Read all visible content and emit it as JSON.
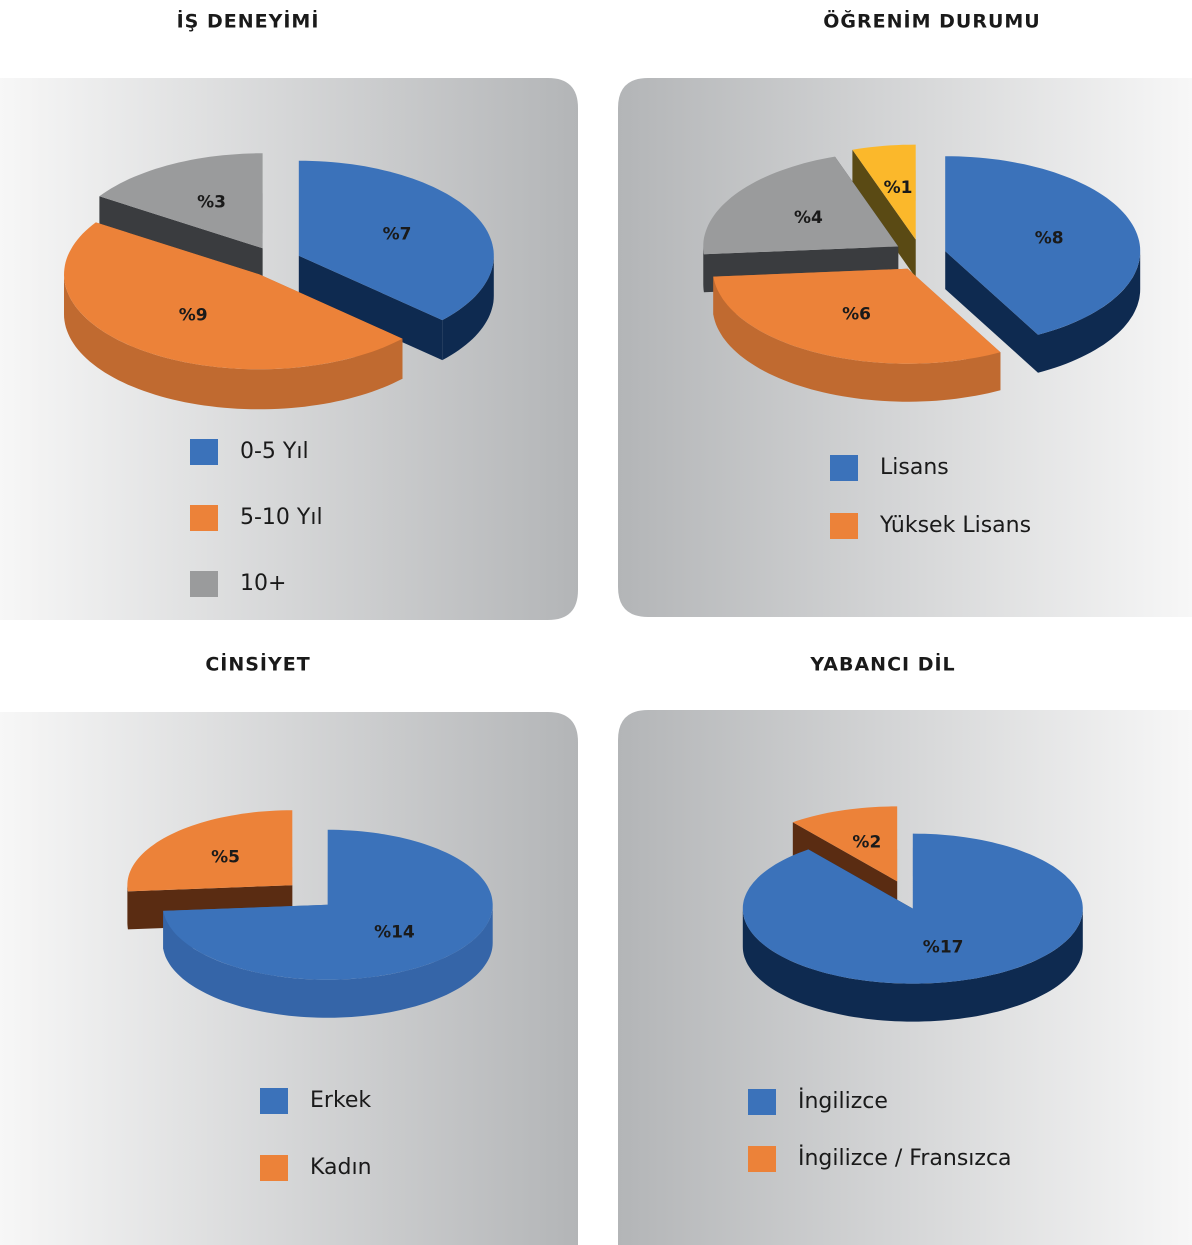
{
  "chart_data": [
    {
      "type": "pie",
      "title": "İŞ DENEYİMİ",
      "categories": [
        "0-5 Yıl",
        "5-10 Yıl",
        "10+"
      ],
      "values": [
        7,
        9,
        3
      ],
      "value_labels": [
        "%7",
        "%9",
        "%3"
      ],
      "colors": [
        "#3b72ba",
        "#ec8239",
        "#9a9b9c"
      ],
      "side_colors": [
        "#0e2a50",
        "#c06a30",
        "#3a3c3f"
      ]
    },
    {
      "type": "pie",
      "title": "ÖĞRENİM DURUMU",
      "categories": [
        "Lisans",
        "Yüksek Lisans",
        null,
        null
      ],
      "values": [
        8,
        6,
        4,
        1
      ],
      "value_labels": [
        "%8",
        "%6",
        "%4",
        "%1"
      ],
      "colors": [
        "#3b72ba",
        "#ec8239",
        "#9a9b9c",
        "#fbb82b"
      ],
      "side_colors": [
        "#0e2a50",
        "#c06a30",
        "#3a3c3f",
        "#5a4a14"
      ]
    },
    {
      "type": "pie",
      "title": "CİNSİYET",
      "categories": [
        "Erkek",
        "Kadın"
      ],
      "values": [
        14,
        5
      ],
      "value_labels": [
        "%14",
        "%5"
      ],
      "colors": [
        "#3b72ba",
        "#ec8239"
      ],
      "side_colors": [
        "#3565a8",
        "#5a2c12"
      ]
    },
    {
      "type": "pie",
      "title": "YABANCI DİL",
      "categories": [
        "İngilizce",
        "İngilizce / Fransızca"
      ],
      "values": [
        17,
        2
      ],
      "value_labels": [
        "%17",
        "%2"
      ],
      "colors": [
        "#3b72ba",
        "#ec8239"
      ],
      "side_colors": [
        "#0e2a50",
        "#5a2c12"
      ]
    }
  ]
}
